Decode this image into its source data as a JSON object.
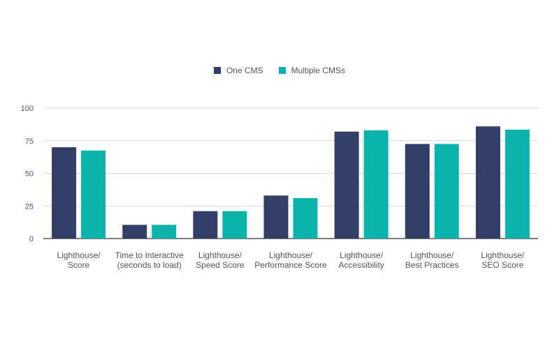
{
  "chart_data": {
    "type": "bar",
    "categories": [
      [
        "Lighthouse/",
        "Score"
      ],
      [
        "Time to Interactive",
        "(seconds to load)"
      ],
      [
        "Lighthouse/",
        "Speed Score"
      ],
      [
        "Lighthouse/",
        "Performance Score"
      ],
      [
        "Lighthouse/",
        "Accessibility"
      ],
      [
        "Lighthouse/",
        "Best Practices"
      ],
      [
        "Lighthouse/",
        "SEO Score"
      ]
    ],
    "series": [
      {
        "name": "One CMS",
        "color": "#333f67",
        "values": [
          70,
          10.5,
          21,
          33,
          82,
          72.5,
          86
        ]
      },
      {
        "name": "Multiple CMSs",
        "color": "#0bb3ad",
        "values": [
          67.5,
          10.5,
          21,
          31,
          83,
          72.5,
          83.5
        ]
      }
    ],
    "yticks": [
      0,
      25,
      50,
      75,
      100
    ],
    "ylim": [
      0,
      100
    ],
    "grid": true,
    "legend_position": "top-center"
  }
}
